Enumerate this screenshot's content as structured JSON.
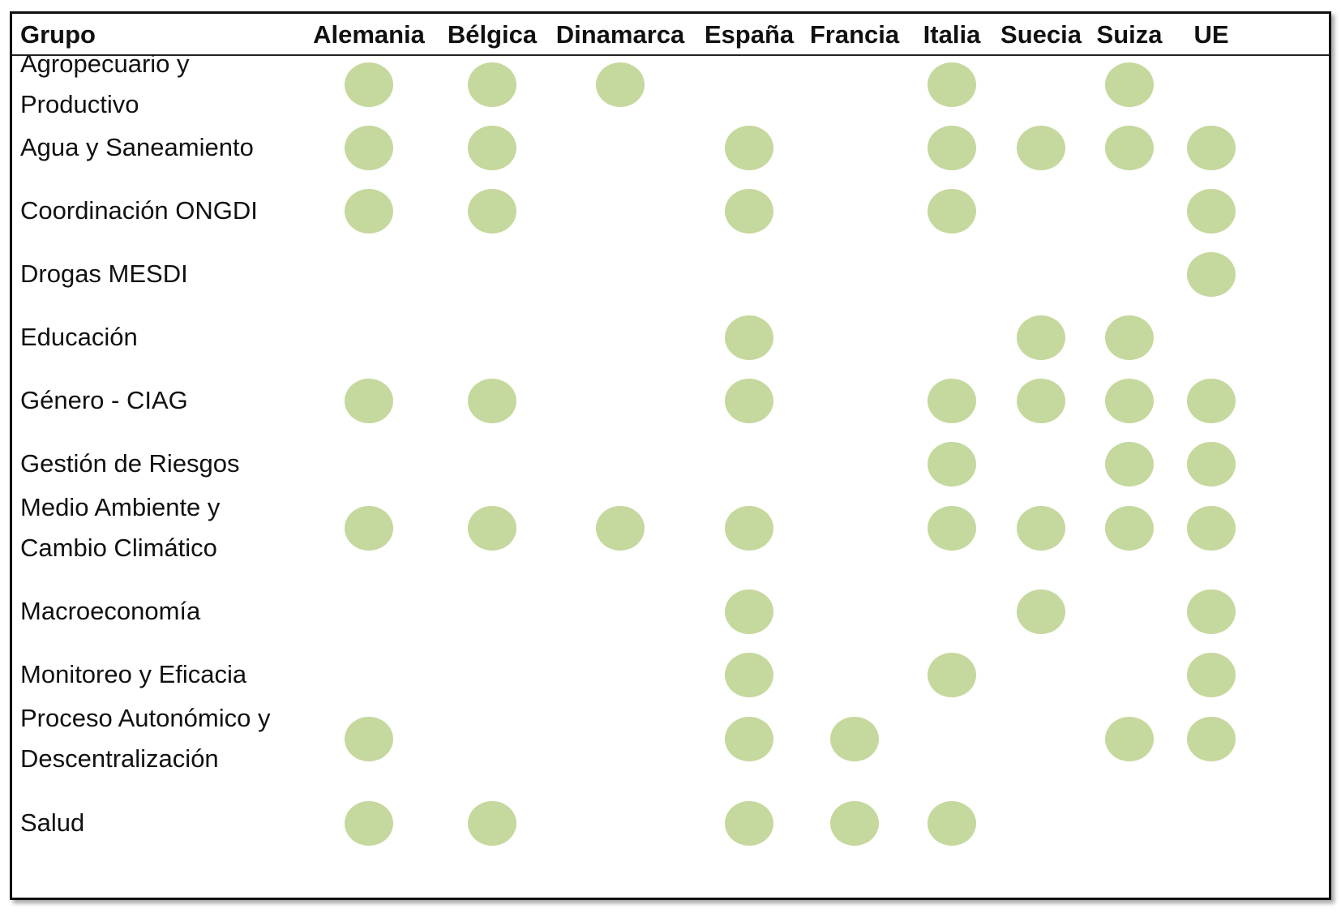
{
  "chart_data": {
    "type": "table",
    "header": "Grupo",
    "columns": [
      "Alemania",
      "Bélgica",
      "Dinamarca",
      "España",
      "Francia",
      "Italia",
      "Suecia",
      "Suiza",
      "UE"
    ],
    "rows": [
      {
        "label": [
          "Agropecuario y",
          "Productivo"
        ],
        "values": [
          1,
          1,
          1,
          0,
          0,
          1,
          0,
          1,
          0
        ]
      },
      {
        "label": [
          "Agua y Saneamiento"
        ],
        "values": [
          1,
          1,
          0,
          1,
          0,
          1,
          1,
          1,
          1
        ]
      },
      {
        "label": [
          "Coordinación ONGDI"
        ],
        "values": [
          1,
          1,
          0,
          1,
          0,
          1,
          0,
          0,
          1
        ]
      },
      {
        "label": [
          "Drogas MESDI"
        ],
        "values": [
          0,
          0,
          0,
          0,
          0,
          0,
          0,
          0,
          1
        ]
      },
      {
        "label": [
          "Educación"
        ],
        "values": [
          0,
          0,
          0,
          1,
          0,
          0,
          1,
          1,
          0
        ]
      },
      {
        "label": [
          "Género - CIAG"
        ],
        "values": [
          1,
          1,
          0,
          1,
          0,
          1,
          1,
          1,
          1
        ]
      },
      {
        "label": [
          "Gestión de Riesgos"
        ],
        "values": [
          0,
          0,
          0,
          0,
          0,
          1,
          0,
          1,
          1
        ]
      },
      {
        "label": [
          "Medio Ambiente y",
          "Cambio Climático"
        ],
        "values": [
          1,
          1,
          1,
          1,
          0,
          1,
          1,
          1,
          1
        ]
      },
      {
        "label": [
          "Macroeconomía"
        ],
        "values": [
          0,
          0,
          0,
          1,
          0,
          0,
          1,
          0,
          1
        ]
      },
      {
        "label": [
          "Monitoreo y Eficacia"
        ],
        "values": [
          0,
          0,
          0,
          1,
          0,
          1,
          0,
          0,
          1
        ]
      },
      {
        "label": [
          "Proceso Autonómico y",
          "Descentralización"
        ],
        "values": [
          1,
          0,
          0,
          1,
          1,
          0,
          0,
          1,
          1
        ]
      },
      {
        "label": [
          "Salud"
        ],
        "values": [
          1,
          1,
          0,
          1,
          1,
          1,
          0,
          0,
          0
        ]
      }
    ],
    "marker_color": "#c5d89d"
  }
}
